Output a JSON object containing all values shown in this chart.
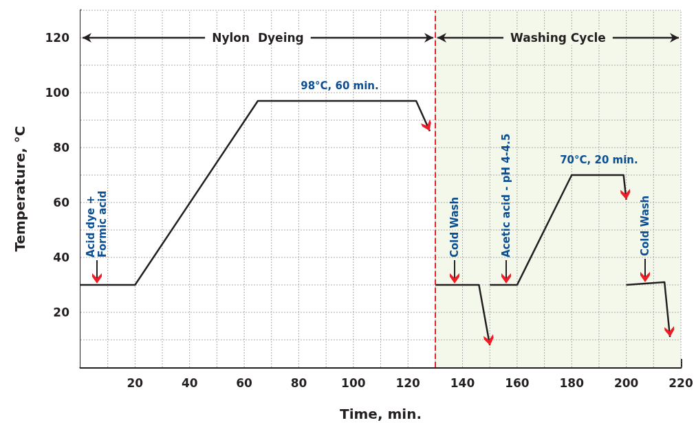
{
  "chart_data": {
    "type": "line",
    "xlabel": "Time, min.",
    "ylabel": "Temperature, °C",
    "xlim": [
      0,
      220
    ],
    "xticks": [
      20,
      40,
      60,
      80,
      100,
      120,
      140,
      160,
      180,
      200,
      220
    ],
    "ylim": [
      0,
      130
    ],
    "yticks": [
      20,
      40,
      60,
      80,
      100,
      120
    ],
    "grid": true,
    "marker": "none",
    "line_style": "solid",
    "series": [
      {
        "color": "#231f20",
        "x": [
          0,
          20,
          65,
          123,
          128
        ],
        "values": [
          30,
          30,
          97,
          97,
          86
        ]
      },
      {
        "color": "#231f20",
        "x": [
          130,
          146,
          150
        ],
        "values": [
          30,
          30,
          8
        ]
      },
      {
        "color": "#231f20",
        "x": [
          150,
          160,
          180,
          199,
          200
        ],
        "values": [
          30,
          30,
          70,
          70,
          61
        ]
      },
      {
        "color": "#231f20",
        "x": [
          200,
          214,
          216
        ],
        "values": [
          30,
          31,
          11
        ]
      }
    ],
    "ref_lines": [
      {
        "axis": "x",
        "value": 130,
        "color": "#e8202a",
        "line_style": "dashed"
      }
    ],
    "bands": [
      {
        "axis": "x",
        "from": 0,
        "to": 130,
        "label": "Nylon  Dyeing",
        "color": "#ffffff"
      },
      {
        "axis": "x",
        "from": 130,
        "to": 220,
        "label": "Washing Cycle",
        "color": "#f4f8ea"
      }
    ],
    "annotations": [
      {
        "text": "Acid dye +\nFormic acid",
        "x": 6,
        "y": 30
      },
      {
        "text": "98°C, 60 min.",
        "x": 95,
        "y": 97
      },
      {
        "text": "Cold Wash",
        "x": 137,
        "y": 30
      },
      {
        "text": "Acetic acid - pH 4-4.5",
        "x": 156,
        "y": 30
      },
      {
        "text": "70°C, 20 min.",
        "x": 190,
        "y": 70
      },
      {
        "text": "Cold Wash",
        "x": 207,
        "y": 30.5
      }
    ]
  }
}
